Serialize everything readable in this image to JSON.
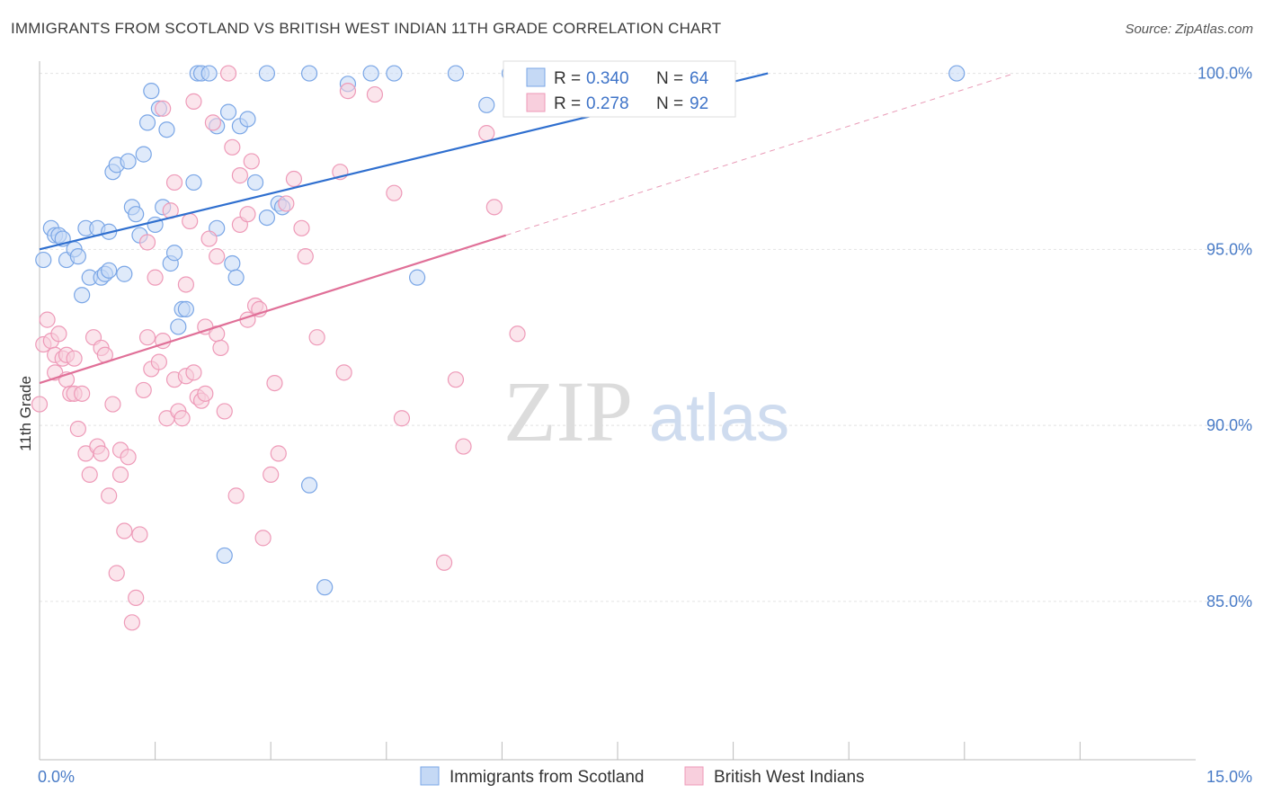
{
  "title": "IMMIGRANTS FROM SCOTLAND VS BRITISH WEST INDIAN 11TH GRADE CORRELATION CHART",
  "source": "Source: ZipAtlas.com",
  "watermark": {
    "zip": "ZIP",
    "atlas": "atlas"
  },
  "chart_data": {
    "type": "scatter",
    "ylabel": "11th Grade",
    "xlabel": "",
    "xlim": [
      0,
      15
    ],
    "ylim": [
      80.5,
      100.5
    ],
    "x_tick_labels": [
      {
        "value": 0,
        "label": "0.0%"
      },
      {
        "value": 15,
        "label": "15.0%"
      }
    ],
    "x_minor_ticks": [
      1.5,
      3,
      4.5,
      6,
      7.5,
      9,
      10.5,
      12,
      13.5
    ],
    "y_ticks": [
      {
        "value": 100,
        "label": "100.0%"
      },
      {
        "value": 95,
        "label": "95.0%"
      },
      {
        "value": 90,
        "label": "90.0%"
      },
      {
        "value": 85,
        "label": "85.0%"
      }
    ],
    "grid": true,
    "legend_position": "top-center",
    "series": [
      {
        "name": "Immigrants from Scotland",
        "color": "#7aa6e6",
        "fill": "#c5d9f5",
        "line_color": "#2f6fcf",
        "R": "0.340",
        "N": "64",
        "trend": {
          "x0": 0,
          "y0": 95.0,
          "x1": 9.45,
          "y1": 100.0,
          "dashed_to_x": 9.45
        },
        "points": [
          [
            0.05,
            94.7
          ],
          [
            0.15,
            95.6
          ],
          [
            0.2,
            95.4
          ],
          [
            0.25,
            95.4
          ],
          [
            0.3,
            95.3
          ],
          [
            0.35,
            94.7
          ],
          [
            0.45,
            95.0
          ],
          [
            0.5,
            94.8
          ],
          [
            0.55,
            93.7
          ],
          [
            0.6,
            95.6
          ],
          [
            0.65,
            94.2
          ],
          [
            0.75,
            95.6
          ],
          [
            0.8,
            94.2
          ],
          [
            0.85,
            94.3
          ],
          [
            0.9,
            94.4
          ],
          [
            0.9,
            95.5
          ],
          [
            0.95,
            97.2
          ],
          [
            1.0,
            97.4
          ],
          [
            1.1,
            94.3
          ],
          [
            1.15,
            97.5
          ],
          [
            1.2,
            96.2
          ],
          [
            1.25,
            96.0
          ],
          [
            1.3,
            95.4
          ],
          [
            1.35,
            97.7
          ],
          [
            1.4,
            98.6
          ],
          [
            1.45,
            99.5
          ],
          [
            1.5,
            95.7
          ],
          [
            1.55,
            99.0
          ],
          [
            1.6,
            96.2
          ],
          [
            1.65,
            98.4
          ],
          [
            1.7,
            94.6
          ],
          [
            1.75,
            94.9
          ],
          [
            1.8,
            92.8
          ],
          [
            1.85,
            93.3
          ],
          [
            1.9,
            93.3
          ],
          [
            2.0,
            96.9
          ],
          [
            2.05,
            100.0
          ],
          [
            2.1,
            100.0
          ],
          [
            2.2,
            100.0
          ],
          [
            2.3,
            95.6
          ],
          [
            2.3,
            98.5
          ],
          [
            2.4,
            86.3
          ],
          [
            2.45,
            98.9
          ],
          [
            2.5,
            94.6
          ],
          [
            2.55,
            94.2
          ],
          [
            2.6,
            98.5
          ],
          [
            2.7,
            98.7
          ],
          [
            2.8,
            96.9
          ],
          [
            2.95,
            95.9
          ],
          [
            2.95,
            100.0
          ],
          [
            3.1,
            96.3
          ],
          [
            3.15,
            96.2
          ],
          [
            3.5,
            88.3
          ],
          [
            3.5,
            100.0
          ],
          [
            3.7,
            85.4
          ],
          [
            4.0,
            99.7
          ],
          [
            4.3,
            100.0
          ],
          [
            4.6,
            100.0
          ],
          [
            4.9,
            94.2
          ],
          [
            5.4,
            100.0
          ],
          [
            5.8,
            99.1
          ],
          [
            6.1,
            100.0
          ],
          [
            6.35,
            100.0
          ],
          [
            11.9,
            100.0
          ]
        ]
      },
      {
        "name": "British West Indians",
        "color": "#ee9ab8",
        "fill": "#f8cfdd",
        "line_color": "#e07098",
        "R": "0.278",
        "N": "92",
        "trend": {
          "x0": 0,
          "y0": 91.2,
          "x1": 6.05,
          "y1": 95.4,
          "dashed_to_x": 12.65,
          "dashed_to_y": 100.0
        },
        "points": [
          [
            0.0,
            90.6
          ],
          [
            0.05,
            92.3
          ],
          [
            0.1,
            93.0
          ],
          [
            0.15,
            92.4
          ],
          [
            0.2,
            92.0
          ],
          [
            0.2,
            91.5
          ],
          [
            0.25,
            92.6
          ],
          [
            0.3,
            91.9
          ],
          [
            0.35,
            91.3
          ],
          [
            0.35,
            92.0
          ],
          [
            0.4,
            90.9
          ],
          [
            0.45,
            91.9
          ],
          [
            0.45,
            90.9
          ],
          [
            0.5,
            89.9
          ],
          [
            0.55,
            90.9
          ],
          [
            0.6,
            89.2
          ],
          [
            0.65,
            88.6
          ],
          [
            0.7,
            92.5
          ],
          [
            0.75,
            89.4
          ],
          [
            0.8,
            92.2
          ],
          [
            0.8,
            89.2
          ],
          [
            0.85,
            92.0
          ],
          [
            0.9,
            88.0
          ],
          [
            0.95,
            90.6
          ],
          [
            1.0,
            85.8
          ],
          [
            1.05,
            88.6
          ],
          [
            1.05,
            89.3
          ],
          [
            1.1,
            87.0
          ],
          [
            1.15,
            89.1
          ],
          [
            1.2,
            84.4
          ],
          [
            1.25,
            85.1
          ],
          [
            1.3,
            86.9
          ],
          [
            1.35,
            91.0
          ],
          [
            1.4,
            92.5
          ],
          [
            1.4,
            95.2
          ],
          [
            1.45,
            91.6
          ],
          [
            1.5,
            94.2
          ],
          [
            1.55,
            91.8
          ],
          [
            1.6,
            92.4
          ],
          [
            1.6,
            99.0
          ],
          [
            1.65,
            90.2
          ],
          [
            1.7,
            96.1
          ],
          [
            1.75,
            96.9
          ],
          [
            1.75,
            91.3
          ],
          [
            1.8,
            90.4
          ],
          [
            1.85,
            90.2
          ],
          [
            1.9,
            91.4
          ],
          [
            1.9,
            94.0
          ],
          [
            1.95,
            95.8
          ],
          [
            2.0,
            99.2
          ],
          [
            2.0,
            91.5
          ],
          [
            2.05,
            90.8
          ],
          [
            2.1,
            90.7
          ],
          [
            2.15,
            92.8
          ],
          [
            2.15,
            90.9
          ],
          [
            2.2,
            95.3
          ],
          [
            2.25,
            98.6
          ],
          [
            2.3,
            92.6
          ],
          [
            2.35,
            92.2
          ],
          [
            2.4,
            90.4
          ],
          [
            2.45,
            100.0
          ],
          [
            2.5,
            97.9
          ],
          [
            2.55,
            88.0
          ],
          [
            2.6,
            97.1
          ],
          [
            2.6,
            95.7
          ],
          [
            2.7,
            96.0
          ],
          [
            2.7,
            93.0
          ],
          [
            2.75,
            97.5
          ],
          [
            2.8,
            93.4
          ],
          [
            2.85,
            93.3
          ],
          [
            2.9,
            86.8
          ],
          [
            3.0,
            88.6
          ],
          [
            3.05,
            91.2
          ],
          [
            3.1,
            89.2
          ],
          [
            3.2,
            96.3
          ],
          [
            3.3,
            97.0
          ],
          [
            3.4,
            95.6
          ],
          [
            3.45,
            94.8
          ],
          [
            3.6,
            92.5
          ],
          [
            3.9,
            97.2
          ],
          [
            3.95,
            91.5
          ],
          [
            4.0,
            99.5
          ],
          [
            4.35,
            99.4
          ],
          [
            4.6,
            96.6
          ],
          [
            4.7,
            90.2
          ],
          [
            5.25,
            86.1
          ],
          [
            5.4,
            91.3
          ],
          [
            5.5,
            89.4
          ],
          [
            5.8,
            98.3
          ],
          [
            5.9,
            96.2
          ],
          [
            6.2,
            92.6
          ],
          [
            2.3,
            94.8
          ]
        ]
      }
    ]
  }
}
